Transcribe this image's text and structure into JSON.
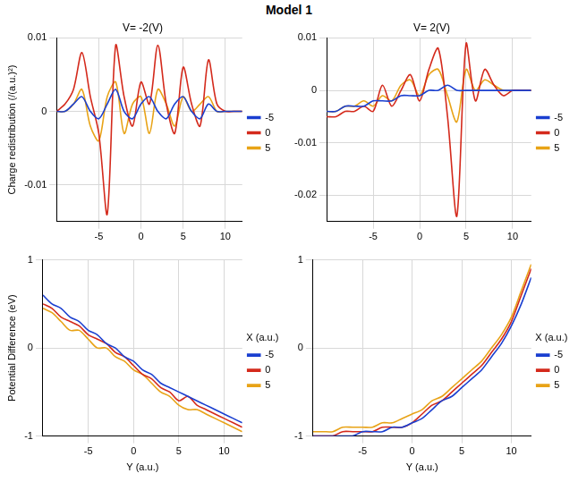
{
  "figure_title": "Model 1",
  "chart_data": [
    {
      "type": "line",
      "title": "V= -2(V)",
      "y_label": "Charge redistribution (/(a.u.)²)",
      "x": [
        -10,
        -9,
        -8,
        -7,
        -6,
        -5,
        -4,
        -3,
        -2,
        -1,
        0,
        1,
        2,
        3,
        4,
        5,
        6,
        7,
        8,
        9,
        10,
        11,
        12
      ],
      "xlim": [
        -10,
        12
      ],
      "xticks": [
        -5,
        0,
        5,
        10
      ],
      "ylim": [
        -0.015,
        0.01
      ],
      "yticks": [
        -0.01,
        0,
        0.01
      ],
      "grid": true,
      "legend": "right",
      "series": [
        {
          "name": "-5",
          "color": "#1a3fd0",
          "values": [
            0,
            0,
            0.001,
            0.002,
            0,
            -0.001,
            0.001,
            0.003,
            0,
            -0.001,
            0.001,
            0.002,
            0,
            -0.001,
            0.001,
            0.002,
            0,
            -0.001,
            0.001,
            0,
            0,
            0,
            0
          ]
        },
        {
          "name": "0",
          "color": "#d42a1c",
          "values": [
            0,
            0.001,
            0.003,
            0.008,
            0.002,
            -0.003,
            -0.014,
            0.009,
            0.002,
            -0.002,
            0.004,
            0.001,
            0.009,
            0.001,
            -0.003,
            0.006,
            0.001,
            -0.002,
            0.007,
            0.001,
            0,
            0,
            0
          ]
        },
        {
          "name": "5",
          "color": "#e8a317",
          "values": [
            0,
            0,
            0.001,
            0.003,
            -0.002,
            -0.004,
            0.002,
            0.004,
            -0.003,
            0.001,
            0.002,
            -0.003,
            0.003,
            0.001,
            -0.002,
            0.002,
            0,
            0.001,
            0.002,
            0,
            0,
            0,
            0
          ]
        }
      ]
    },
    {
      "type": "line",
      "title": "V= 2(V)",
      "x": [
        -10,
        -9,
        -8,
        -7,
        -6,
        -5,
        -4,
        -3,
        -2,
        -1,
        0,
        1,
        2,
        3,
        4,
        5,
        6,
        7,
        8,
        9,
        10,
        11,
        12
      ],
      "xlim": [
        -10,
        12
      ],
      "xticks": [
        -5,
        0,
        5,
        10
      ],
      "ylim": [
        -0.025,
        0.01
      ],
      "yticks": [
        -0.02,
        -0.01,
        0,
        0.01
      ],
      "grid": true,
      "legend": "right",
      "series": [
        {
          "name": "-5",
          "color": "#1a3fd0",
          "values": [
            -0.004,
            -0.004,
            -0.003,
            -0.003,
            -0.003,
            -0.002,
            -0.002,
            -0.002,
            -0.001,
            -0.001,
            -0.001,
            0,
            0,
            0.001,
            0,
            0,
            0,
            0,
            0,
            0,
            0,
            0,
            0
          ]
        },
        {
          "name": "0",
          "color": "#d42a1c",
          "values": [
            -0.005,
            -0.005,
            -0.004,
            -0.004,
            -0.003,
            -0.004,
            0.001,
            -0.003,
            0,
            0.003,
            -0.002,
            0.004,
            0.008,
            -0.005,
            -0.024,
            0.009,
            -0.002,
            0.004,
            0.001,
            -0.001,
            0,
            0,
            0
          ]
        },
        {
          "name": "5",
          "color": "#e8a317",
          "values": [
            -0.004,
            -0.004,
            -0.003,
            -0.003,
            -0.002,
            -0.003,
            -0.001,
            -0.002,
            0.001,
            0.002,
            -0.001,
            0.003,
            0.004,
            -0.001,
            -0.006,
            0.004,
            0,
            0.002,
            0.001,
            0,
            0,
            0,
            0
          ]
        }
      ]
    },
    {
      "type": "line",
      "y_label": "Potential Difference (eV)",
      "x_label": "Y (a.u.)",
      "z_label": "X (a.u.)",
      "x": [
        -10,
        -9,
        -8,
        -7,
        -6,
        -5,
        -4,
        -3,
        -2,
        -1,
        0,
        1,
        2,
        3,
        4,
        5,
        6,
        7,
        8,
        9,
        10,
        11,
        12
      ],
      "xlim": [
        -10,
        12
      ],
      "xticks": [
        -5,
        0,
        5,
        10
      ],
      "ylim": [
        -1,
        1
      ],
      "yticks": [
        -1,
        0,
        1
      ],
      "grid": true,
      "legend": "right",
      "series": [
        {
          "name": "-5",
          "color": "#1a3fd0",
          "values": [
            0.6,
            0.5,
            0.45,
            0.35,
            0.3,
            0.2,
            0.15,
            0.05,
            0,
            -0.1,
            -0.15,
            -0.25,
            -0.3,
            -0.4,
            -0.45,
            -0.5,
            -0.55,
            -0.6,
            -0.65,
            -0.7,
            -0.75,
            -0.8,
            -0.85
          ]
        },
        {
          "name": "0",
          "color": "#d42a1c",
          "values": [
            0.5,
            0.45,
            0.35,
            0.3,
            0.25,
            0.15,
            0.1,
            0.05,
            -0.05,
            -0.1,
            -0.2,
            -0.3,
            -0.35,
            -0.45,
            -0.5,
            -0.6,
            -0.55,
            -0.65,
            -0.7,
            -0.75,
            -0.8,
            -0.85,
            -0.9
          ]
        },
        {
          "name": "5",
          "color": "#e8a317",
          "values": [
            0.45,
            0.4,
            0.3,
            0.2,
            0.2,
            0.1,
            0,
            0,
            -0.1,
            -0.15,
            -0.25,
            -0.3,
            -0.4,
            -0.5,
            -0.55,
            -0.65,
            -0.7,
            -0.7,
            -0.75,
            -0.8,
            -0.85,
            -0.9,
            -0.95
          ]
        }
      ]
    },
    {
      "type": "line",
      "x_label": "Y (a.u.)",
      "z_label": "X (a.u.)",
      "x": [
        -10,
        -9,
        -8,
        -7,
        -6,
        -5,
        -4,
        -3,
        -2,
        -1,
        0,
        1,
        2,
        3,
        4,
        5,
        6,
        7,
        8,
        9,
        10,
        11,
        12
      ],
      "xlim": [
        -10,
        12
      ],
      "xticks": [
        -5,
        0,
        5,
        10
      ],
      "ylim": [
        -1,
        1
      ],
      "yticks": [
        -1,
        0,
        1
      ],
      "grid": true,
      "legend": "right",
      "series": [
        {
          "name": "-5",
          "color": "#1a3fd0",
          "values": [
            -1,
            -1,
            -1,
            -1,
            -1,
            -0.95,
            -0.95,
            -0.95,
            -0.9,
            -0.9,
            -0.85,
            -0.8,
            -0.7,
            -0.6,
            -0.55,
            -0.45,
            -0.35,
            -0.25,
            -0.1,
            0.05,
            0.25,
            0.5,
            0.8
          ]
        },
        {
          "name": "0",
          "color": "#d42a1c",
          "values": [
            -1,
            -1,
            -1,
            -0.95,
            -0.95,
            -0.95,
            -0.95,
            -0.9,
            -0.9,
            -0.9,
            -0.85,
            -0.75,
            -0.65,
            -0.6,
            -0.5,
            -0.4,
            -0.3,
            -0.2,
            -0.05,
            0.1,
            0.3,
            0.6,
            0.9
          ]
        },
        {
          "name": "5",
          "color": "#e8a317",
          "values": [
            -0.95,
            -0.95,
            -0.95,
            -0.9,
            -0.9,
            -0.9,
            -0.9,
            -0.85,
            -0.85,
            -0.8,
            -0.75,
            -0.7,
            -0.6,
            -0.55,
            -0.45,
            -0.35,
            -0.25,
            -0.15,
            0,
            0.15,
            0.35,
            0.65,
            0.95
          ]
        }
      ]
    }
  ]
}
